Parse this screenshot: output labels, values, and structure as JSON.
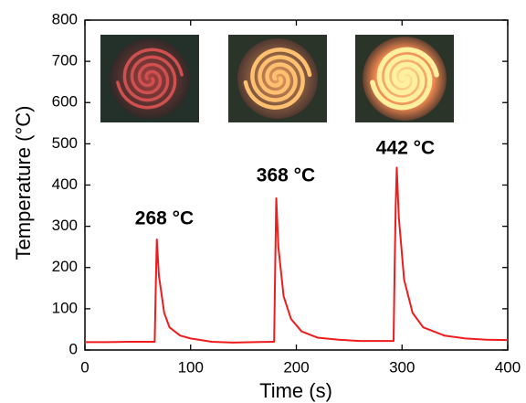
{
  "chart_data": {
    "type": "line",
    "x_label": "Time (s)",
    "y_label": "Temperature (°C)",
    "annotations": [
      "268 °C",
      "368 °C",
      "442 °C"
    ],
    "x": [
      0,
      20,
      40,
      60,
      66,
      67,
      68,
      70,
      75,
      80,
      90,
      100,
      120,
      140,
      160,
      178,
      179,
      180,
      181,
      183,
      188,
      195,
      205,
      220,
      240,
      260,
      280,
      290,
      292,
      293,
      294,
      295,
      297,
      302,
      310,
      320,
      340,
      360,
      380,
      400
    ],
    "series": [
      {
        "color": "#ee1c1c",
        "values": [
          19,
          19,
          20,
          20,
          20,
          150,
          268,
          180,
          90,
          55,
          35,
          28,
          20,
          18,
          19,
          20,
          20,
          200,
          368,
          250,
          130,
          75,
          45,
          30,
          25,
          22,
          22,
          22,
          22,
          200,
          350,
          442,
          320,
          170,
          90,
          55,
          35,
          28,
          25,
          24
        ]
      }
    ],
    "xlim": [
      0,
      400
    ],
    "xticks": [
      0,
      100,
      200,
      300,
      400
    ],
    "ylim": [
      0,
      800
    ],
    "yticks": [
      0,
      100,
      200,
      300,
      400,
      500,
      600,
      700,
      800
    ]
  }
}
